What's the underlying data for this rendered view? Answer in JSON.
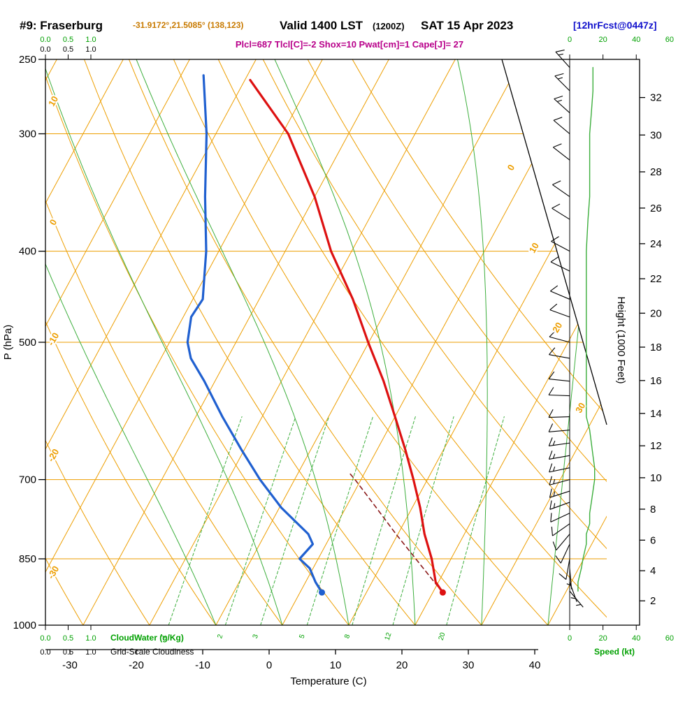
{
  "header": {
    "station": "#9: Fraserburg",
    "coords": "-31.9172°,21.5085° (138,123)",
    "valid_time": "Valid 1400 LST",
    "valid_z": "(1200Z)",
    "valid_date": "SAT 15 Apr 2023",
    "forecast_tag": "[12hrFcst@0447z]",
    "indices": "Plcl=687 Tlcl[C]=-2 Shox=10 Pwat[cm]=1 Cape[J]= 27"
  },
  "axes": {
    "pressure_label": "P (hPa)",
    "pressure_ticks": [
      250,
      300,
      400,
      500,
      700,
      850,
      1000
    ],
    "temperature_label": "Temperature (C)",
    "temperature_ticks": [
      -30,
      -20,
      -10,
      0,
      10,
      20,
      30,
      40
    ],
    "height_label": "Height (1000 Feet)",
    "height_ticks": [
      2,
      4,
      6,
      8,
      10,
      12,
      14,
      16,
      18,
      20,
      22,
      24,
      26,
      28,
      30,
      32
    ],
    "speed_label": "Speed (kt)",
    "speed_ticks": [
      0,
      20,
      40,
      60
    ],
    "cloudwater_label": "CloudWater (g/Kg)",
    "cloudiness_label": "Grid-Scale Cloudiness",
    "cloud_scale_ticks": [
      "0.0",
      "0.5",
      "1.0"
    ]
  },
  "chart_data": {
    "type": "line",
    "subtype": "skew-t log-p sounding",
    "pressure_range_hpa": [
      1000,
      250
    ],
    "temperature_range_c": [
      -33,
      40
    ],
    "isotherm_label_values": [
      0,
      10,
      20,
      30
    ],
    "dry_adiabat_label_values": [
      10,
      0,
      -10,
      -20,
      -30
    ],
    "mixing_ratio_lines_gkg": [
      1,
      2,
      3,
      5,
      8,
      12,
      20
    ],
    "moist_adiabat_start_temps_c": [
      -10,
      0,
      10,
      20,
      30,
      40
    ],
    "surface_pressure_hpa": 923,
    "surface_temperature_c": 21.5,
    "surface_dewpoint_c": 3.3,
    "temperature_profile": {
      "pressure_hpa": [
        923,
        900,
        850,
        800,
        750,
        700,
        650,
        600,
        550,
        500,
        450,
        400,
        350,
        300,
        263
      ],
      "temp_c": [
        21.5,
        19.6,
        17.1,
        14.0,
        11.2,
        7.9,
        4.2,
        0.0,
        -4.6,
        -10.1,
        -15.9,
        -23.1,
        -30.0,
        -39.1,
        -49.2
      ]
    },
    "dewpoint_profile": {
      "pressure_hpa": [
        923,
        900,
        870,
        850,
        820,
        800,
        750,
        700,
        650,
        600,
        550,
        520,
        500,
        470,
        450,
        420,
        400,
        350,
        300,
        260
      ],
      "dewpoint_c": [
        3.3,
        1.5,
        -0.5,
        -2.8,
        -2.0,
        -3.5,
        -9.7,
        -15.2,
        -20.5,
        -26.0,
        -31.6,
        -35.5,
        -37.3,
        -38.8,
        -38.5,
        -40.5,
        -41.9,
        -46.5,
        -51.4,
        -56.6
      ]
    },
    "parcel_path": {
      "pressure_hpa": [
        923,
        900,
        850,
        800,
        750,
        700,
        687
      ],
      "temp_c": [
        21.5,
        19.4,
        14.7,
        9.7,
        4.6,
        -0.9,
        -2.5
      ]
    },
    "winds": [
      [
        920,
        140,
        5
      ],
      [
        900,
        160,
        5
      ],
      [
        870,
        175,
        7
      ],
      [
        850,
        190,
        8
      ],
      [
        820,
        205,
        10
      ],
      [
        800,
        220,
        10
      ],
      [
        780,
        235,
        12
      ],
      [
        760,
        245,
        12
      ],
      [
        740,
        250,
        13
      ],
      [
        720,
        252,
        14
      ],
      [
        700,
        255,
        15
      ],
      [
        680,
        258,
        15
      ],
      [
        660,
        260,
        14
      ],
      [
        640,
        262,
        13
      ],
      [
        620,
        265,
        12
      ],
      [
        600,
        268,
        10
      ],
      [
        570,
        272,
        10
      ],
      [
        550,
        276,
        10
      ],
      [
        520,
        280,
        10
      ],
      [
        500,
        285,
        10
      ],
      [
        470,
        290,
        10
      ],
      [
        450,
        293,
        10
      ],
      [
        420,
        296,
        10
      ],
      [
        400,
        298,
        10
      ],
      [
        370,
        302,
        11
      ],
      [
        350,
        305,
        12
      ],
      [
        320,
        308,
        12
      ],
      [
        300,
        310,
        12
      ],
      [
        285,
        312,
        13
      ],
      [
        270,
        315,
        14
      ],
      [
        255,
        318,
        14
      ]
    ],
    "winds_format": [
      "pressure_hpa",
      "direction_deg_from",
      "speed_kt"
    ]
  },
  "colors": {
    "grid_orange": "#ED9E00",
    "line_green": "#3CAE3C",
    "text_green": "#00A000",
    "temperature_red": "#DD1111",
    "dewpoint_blue": "#2060D0",
    "parcel_maroon": "#8B1A1A",
    "indices_magenta": "#B8008A",
    "forecast_blue": "#1111CC",
    "coords_orange": "#C87A00",
    "frame_black": "#000000"
  }
}
